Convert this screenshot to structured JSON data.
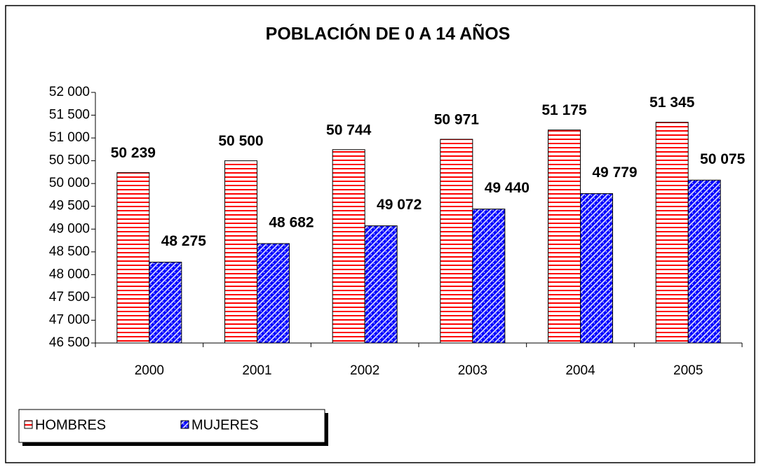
{
  "chart_data": {
    "type": "bar",
    "title": "POBLACIÓN DE 0 A 14 AÑOS",
    "categories": [
      "2000",
      "2001",
      "2002",
      "2003",
      "2004",
      "2005"
    ],
    "series": [
      {
        "name": "HOMBRES",
        "color": "#ff0000",
        "values": [
          50239,
          50500,
          50744,
          50971,
          51175,
          51345
        ],
        "value_labels": [
          "50 239",
          "50 500",
          "50 744",
          "50 971",
          "51 175",
          "51 345"
        ]
      },
      {
        "name": "MUJERES",
        "color": "#0000ff",
        "values": [
          48275,
          48682,
          49072,
          49440,
          49779,
          50075
        ],
        "value_labels": [
          "48 275",
          "48 682",
          "49 072",
          "49 440",
          "49 779",
          "50 075"
        ]
      }
    ],
    "ylim": [
      46500,
      52000
    ],
    "yticks": [
      {
        "value": 46500,
        "label": "46 500"
      },
      {
        "value": 47000,
        "label": "47 000"
      },
      {
        "value": 47500,
        "label": "47 500"
      },
      {
        "value": 48000,
        "label": "48 000"
      },
      {
        "value": 48500,
        "label": "48 500"
      },
      {
        "value": 49000,
        "label": "49 000"
      },
      {
        "value": 49500,
        "label": "49 500"
      },
      {
        "value": 50000,
        "label": "50 000"
      },
      {
        "value": 50500,
        "label": "50 500"
      },
      {
        "value": 51000,
        "label": "51 000"
      },
      {
        "value": 51500,
        "label": "51 500"
      },
      {
        "value": 52000,
        "label": "52 000"
      }
    ],
    "grid": false,
    "legend": "bottom-left"
  }
}
